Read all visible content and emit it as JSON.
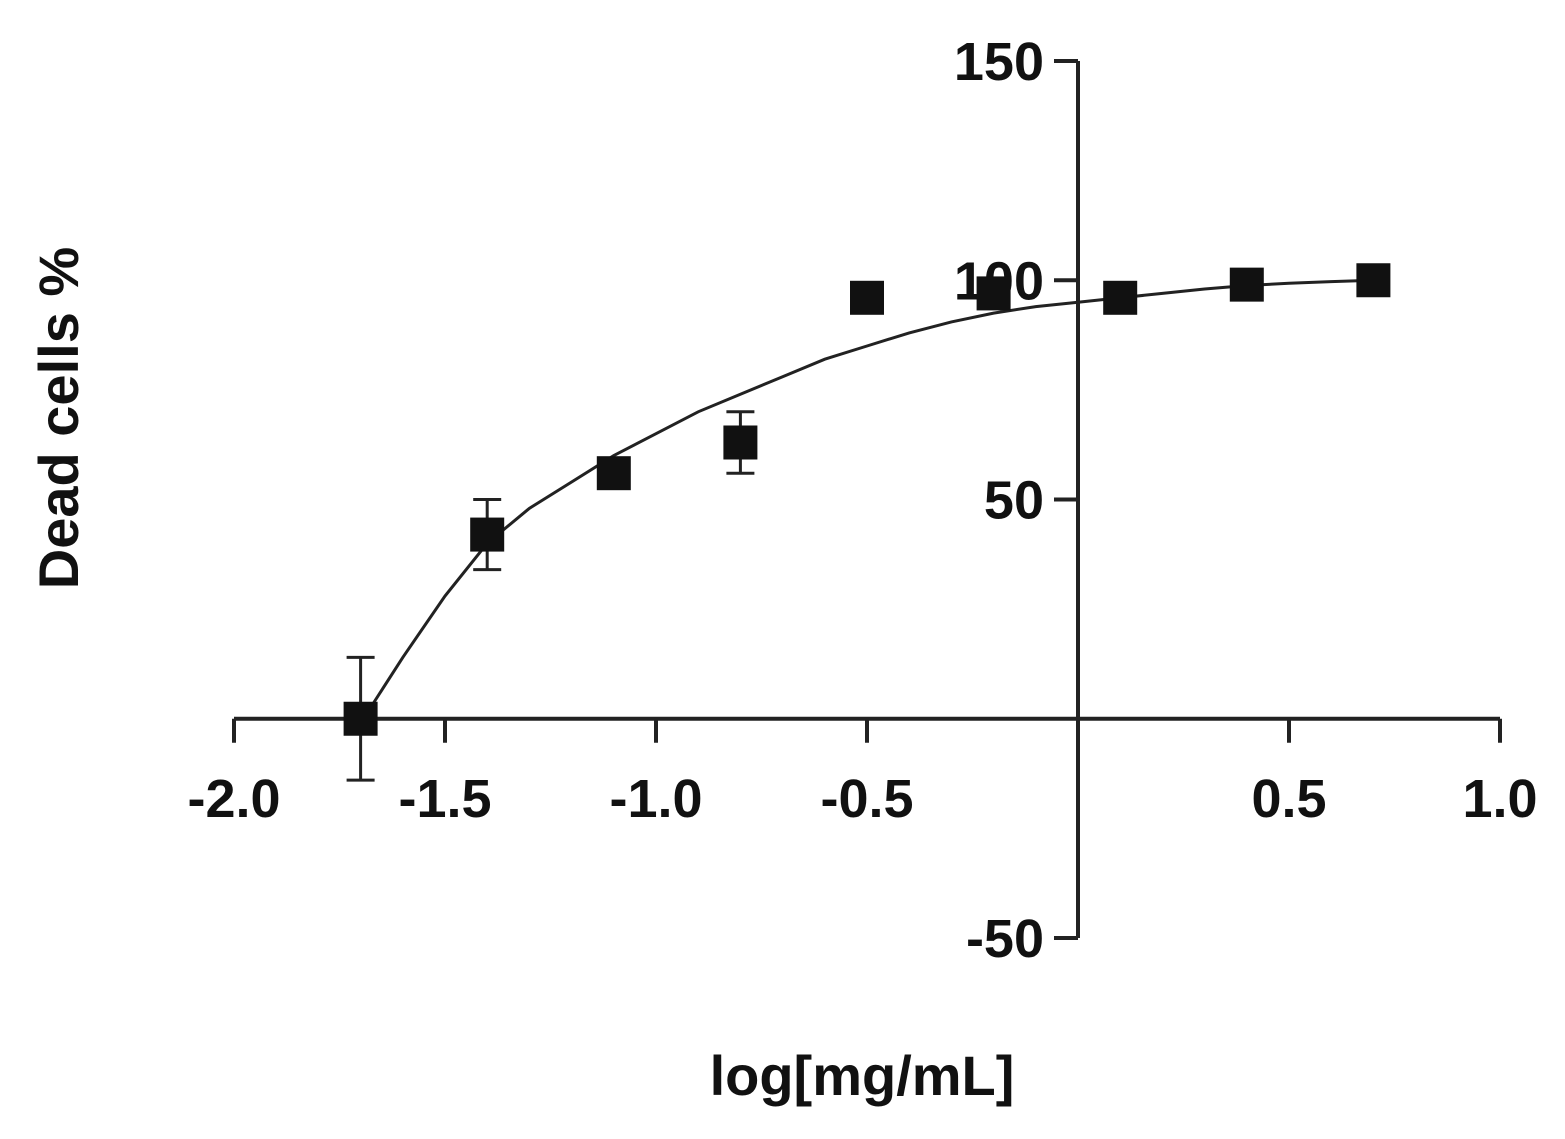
{
  "chart_data": {
    "type": "scatter",
    "title": "",
    "xlabel": "log[mg/mL]",
    "ylabel": "Dead cells %",
    "xlim": [
      -2.0,
      1.0
    ],
    "ylim": [
      -50,
      150
    ],
    "x_ticks": [
      -2.0,
      -1.5,
      -1.0,
      -0.5,
      0.5,
      1.0
    ],
    "x_tick_labels": [
      "-2.0",
      "-1.5",
      "-1.0",
      "-0.5",
      "0.5",
      "1.0"
    ],
    "y_ticks": [
      -50,
      50,
      100,
      150
    ],
    "y_tick_labels": [
      "-50",
      "50",
      "100",
      "150"
    ],
    "axes_cross_at": {
      "x": 0,
      "y": 0
    },
    "grid": false,
    "legend": "none",
    "marker": "square",
    "color": "#111111",
    "series": [
      {
        "points": [
          {
            "x": -1.7,
            "y": 0,
            "err": 14
          },
          {
            "x": -1.4,
            "y": 42,
            "err": 8
          },
          {
            "x": -1.1,
            "y": 56,
            "err": 0
          },
          {
            "x": -0.8,
            "y": 63,
            "err": 7
          },
          {
            "x": -0.5,
            "y": 96,
            "err": 0
          },
          {
            "x": -0.2,
            "y": 97,
            "err": 0
          },
          {
            "x": 0.1,
            "y": 96,
            "err": 0
          },
          {
            "x": 0.4,
            "y": 99,
            "err": 0
          },
          {
            "x": 0.7,
            "y": 100,
            "err": 0
          }
        ]
      }
    ],
    "fit_curve": {
      "type": "nonlinear",
      "points": [
        {
          "x": -1.68,
          "y": 2
        },
        {
          "x": -1.6,
          "y": 14
        },
        {
          "x": -1.5,
          "y": 28
        },
        {
          "x": -1.4,
          "y": 40
        },
        {
          "x": -1.3,
          "y": 48
        },
        {
          "x": -1.2,
          "y": 54
        },
        {
          "x": -1.1,
          "y": 60
        },
        {
          "x": -1.0,
          "y": 65
        },
        {
          "x": -0.9,
          "y": 70
        },
        {
          "x": -0.8,
          "y": 74
        },
        {
          "x": -0.7,
          "y": 78
        },
        {
          "x": -0.6,
          "y": 82
        },
        {
          "x": -0.5,
          "y": 85
        },
        {
          "x": -0.4,
          "y": 88
        },
        {
          "x": -0.3,
          "y": 90.5
        },
        {
          "x": -0.2,
          "y": 92.5
        },
        {
          "x": -0.1,
          "y": 94
        },
        {
          "x": 0.0,
          "y": 95
        },
        {
          "x": 0.1,
          "y": 96
        },
        {
          "x": 0.2,
          "y": 97
        },
        {
          "x": 0.3,
          "y": 98
        },
        {
          "x": 0.4,
          "y": 98.8
        },
        {
          "x": 0.5,
          "y": 99.3
        },
        {
          "x": 0.6,
          "y": 99.7
        },
        {
          "x": 0.7,
          "y": 100
        }
      ]
    }
  }
}
